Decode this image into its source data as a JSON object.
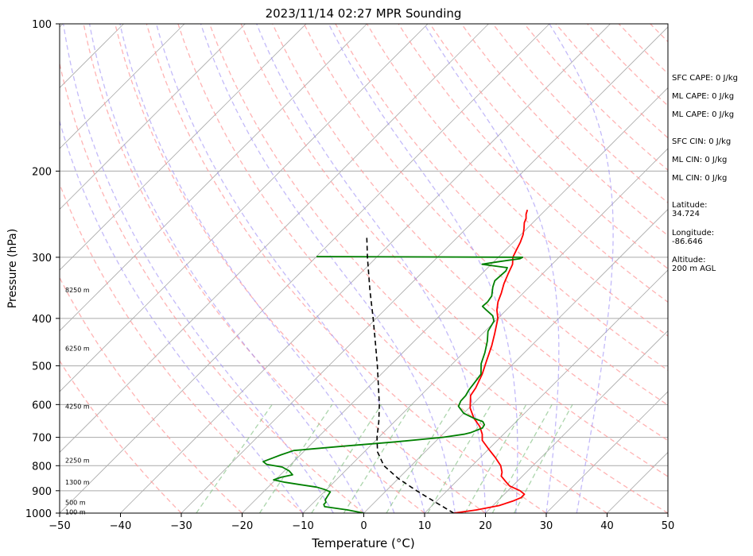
{
  "chart_data": {
    "type": "line",
    "title": "2023/11/14 02:27 MPR Sounding",
    "xlabel": "Temperature (°C)",
    "ylabel": "Pressure (hPa)",
    "xlim": [
      -50,
      50
    ],
    "ylim": [
      1000,
      100
    ],
    "y_scale": "log",
    "skew": true,
    "grid": true,
    "x_ticks": [
      -50,
      -40,
      -30,
      -20,
      -10,
      0,
      10,
      20,
      30,
      40,
      50
    ],
    "y_ticks": [
      1000,
      900,
      800,
      700,
      600,
      500,
      400,
      300,
      200,
      100
    ],
    "height_labels": [
      {
        "pressure": 350,
        "text": "8250 m"
      },
      {
        "pressure": 460,
        "text": "6250 m"
      },
      {
        "pressure": 605,
        "text": "4250 m"
      },
      {
        "pressure": 780,
        "text": "2250 m"
      },
      {
        "pressure": 865,
        "text": "1300 m"
      },
      {
        "pressure": 950,
        "text": "500 m"
      },
      {
        "pressure": 995,
        "text": "100 m"
      }
    ],
    "series": [
      {
        "kind": "temperature",
        "color": "#ff0000",
        "points": [
          [
            1000,
            14.8
          ],
          [
            985,
            18.0
          ],
          [
            965,
            21.0
          ],
          [
            945,
            22.5
          ],
          [
            930,
            23.3
          ],
          [
            915,
            23.3
          ],
          [
            900,
            22.0
          ],
          [
            880,
            19.5
          ],
          [
            860,
            18.0
          ],
          [
            840,
            16.5
          ],
          [
            825,
            16.0
          ],
          [
            800,
            14.7
          ],
          [
            770,
            12.5
          ],
          [
            740,
            10.0
          ],
          [
            710,
            7.5
          ],
          [
            690,
            6.5
          ],
          [
            665,
            4.8
          ],
          [
            640,
            2.5
          ],
          [
            610,
            0.2
          ],
          [
            575,
            -1.8
          ],
          [
            555,
            -2.2
          ],
          [
            520,
            -3.4
          ],
          [
            490,
            -4.8
          ],
          [
            455,
            -6.5
          ],
          [
            430,
            -8.0
          ],
          [
            400,
            -10.0
          ],
          [
            385,
            -11.5
          ],
          [
            370,
            -12.7
          ],
          [
            355,
            -13.6
          ],
          [
            340,
            -14.7
          ],
          [
            325,
            -15.6
          ],
          [
            310,
            -16.5
          ],
          [
            300,
            -17.6
          ],
          [
            290,
            -18.2
          ],
          [
            280,
            -18.8
          ],
          [
            270,
            -19.6
          ],
          [
            262,
            -20.5
          ],
          [
            255,
            -21.4
          ],
          [
            250,
            -21.8
          ],
          [
            245,
            -22.5
          ],
          [
            240,
            -23.0
          ]
        ]
      },
      {
        "kind": "dewpoint",
        "color": "#008000",
        "points": [
          [
            1000,
            0.0
          ],
          [
            985,
            -3.2
          ],
          [
            970,
            -7.5
          ],
          [
            960,
            -8.0
          ],
          [
            950,
            -8.0
          ],
          [
            940,
            -8.5
          ],
          [
            920,
            -8.8
          ],
          [
            905,
            -9.0
          ],
          [
            895,
            -10.3
          ],
          [
            885,
            -12.0
          ],
          [
            875,
            -15.0
          ],
          [
            865,
            -18.0
          ],
          [
            855,
            -20.3
          ],
          [
            845,
            -19.5
          ],
          [
            835,
            -18.0
          ],
          [
            820,
            -19.2
          ],
          [
            805,
            -21.0
          ],
          [
            795,
            -24.0
          ],
          [
            785,
            -25.0
          ],
          [
            775,
            -24.3
          ],
          [
            760,
            -23.2
          ],
          [
            745,
            -21.8
          ],
          [
            730,
            -14.5
          ],
          [
            715,
            -6.5
          ],
          [
            700,
            0.5
          ],
          [
            690,
            3.5
          ],
          [
            685,
            4.3
          ],
          [
            670,
            5.5
          ],
          [
            660,
            5.3
          ],
          [
            650,
            4.5
          ],
          [
            640,
            2.5
          ],
          [
            625,
            0.0
          ],
          [
            605,
            -2.0
          ],
          [
            590,
            -2.5
          ],
          [
            575,
            -2.6
          ],
          [
            560,
            -3.0
          ],
          [
            545,
            -3.2
          ],
          [
            520,
            -3.6
          ],
          [
            495,
            -5.3
          ],
          [
            470,
            -6.5
          ],
          [
            445,
            -8.0
          ],
          [
            425,
            -9.5
          ],
          [
            405,
            -10.2
          ],
          [
            395,
            -11.3
          ],
          [
            385,
            -13.2
          ],
          [
            378,
            -14.5
          ],
          [
            370,
            -14.4
          ],
          [
            360,
            -14.7
          ],
          [
            345,
            -16.0
          ],
          [
            335,
            -16.7
          ],
          [
            320,
            -16.5
          ],
          [
            315,
            -16.8
          ],
          [
            310,
            -21.5
          ],
          [
            306,
            -19.0
          ],
          [
            302,
            -16.2
          ],
          [
            300,
            -16.0
          ],
          [
            299,
            -50.0
          ]
        ]
      },
      {
        "kind": "parcel",
        "color": "#000000",
        "style": "dashed",
        "points": [
          [
            1000,
            14.8
          ],
          [
            950,
            10.0
          ],
          [
            900,
            5.0
          ],
          [
            850,
            0.0
          ],
          [
            800,
            -4.5
          ],
          [
            750,
            -7.8
          ],
          [
            700,
            -10.3
          ],
          [
            650,
            -12.6
          ],
          [
            600,
            -15.3
          ],
          [
            550,
            -18.5
          ],
          [
            500,
            -22.0
          ],
          [
            450,
            -26.0
          ],
          [
            400,
            -30.5
          ],
          [
            350,
            -35.7
          ],
          [
            300,
            -41.5
          ],
          [
            270,
            -45.3
          ]
        ]
      }
    ]
  },
  "indices": {
    "sfc_cape": "SFC CAPE: 0 J/kg",
    "ml_cape_1": "ML CAPE: 0 J/kg",
    "ml_cape_2": "ML CAPE: 0 J/kg",
    "sfc_cin": "SFC CIN: 0 J/kg",
    "ml_cin_1": "ML CIN: 0 J/kg",
    "ml_cin_2": "ML CIN: 0 J/kg",
    "latitude": "Latitude:\n34.724",
    "longitude": "Longitude:\n-86.646",
    "altitude": "Altitude:\n200 m AGL"
  },
  "colors": {
    "isotherm": "#aaaaaa",
    "dry_adiabat": "#ff9999",
    "moist_adiabat": "#9b8cf5",
    "mixing_ratio": "#7fbf7f"
  }
}
